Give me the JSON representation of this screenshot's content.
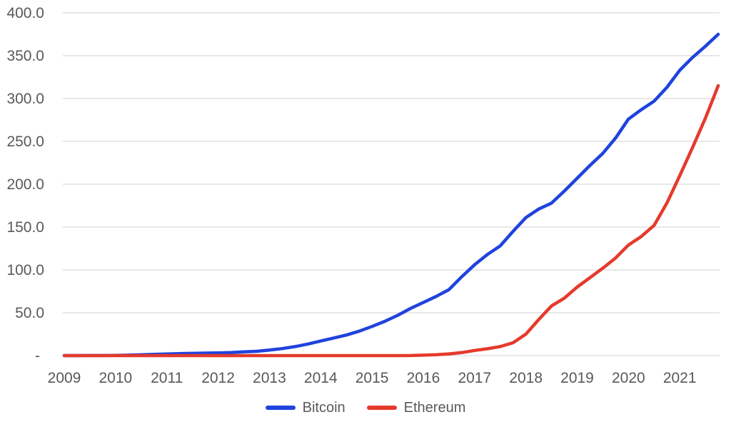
{
  "chart_data": {
    "type": "line",
    "title": "",
    "xlabel": "",
    "ylabel": "",
    "grid": "horizontal",
    "legend_position": "bottom-center",
    "background_color": "#ffffff",
    "gridline_color": "#d9d9d9",
    "axis_text_color": "#595959",
    "ylim": [
      0,
      400
    ],
    "y_tick_step": 50,
    "y_tick_labels": [
      "-",
      "50.0",
      "100.0",
      "150.0",
      "200.0",
      "250.0",
      "300.0",
      "350.0",
      "400.0"
    ],
    "x_tick_labels": [
      "2009",
      "2010",
      "2011",
      "2012",
      "2013",
      "2014",
      "2015",
      "2016",
      "2017",
      "2018",
      "2019",
      "2020",
      "2021"
    ],
    "x": [
      2009.0,
      2009.25,
      2009.5,
      2009.75,
      2010.0,
      2010.25,
      2010.5,
      2010.75,
      2011.0,
      2011.25,
      2011.5,
      2011.75,
      2012.0,
      2012.25,
      2012.5,
      2012.75,
      2013.0,
      2013.25,
      2013.5,
      2013.75,
      2014.0,
      2014.25,
      2014.5,
      2014.75,
      2015.0,
      2015.25,
      2015.5,
      2015.75,
      2016.0,
      2016.25,
      2016.5,
      2016.75,
      2017.0,
      2017.25,
      2017.5,
      2017.75,
      2018.0,
      2018.25,
      2018.5,
      2018.75,
      2019.0,
      2019.25,
      2019.5,
      2019.75,
      2020.0,
      2020.25,
      2020.5,
      2020.75,
      2021.0,
      2021.25,
      2021.5,
      2021.75
    ],
    "series": [
      {
        "name": "Bitcoin",
        "color": "#1f43dd",
        "values": [
          0.0,
          0.0,
          0.1,
          0.1,
          0.2,
          0.5,
          0.9,
          1.4,
          1.9,
          2.3,
          2.6,
          2.9,
          3.2,
          3.6,
          4.3,
          5.0,
          6.5,
          8.2,
          10.5,
          13.5,
          17.0,
          20.5,
          24.0,
          28.5,
          34.0,
          40.0,
          47.0,
          55.0,
          62.0,
          69.0,
          77.0,
          92.0,
          106.0,
          118.0,
          128.0,
          145.0,
          161.0,
          171.0,
          178.0,
          192.0,
          207.0,
          222.0,
          236.0,
          254.0,
          276.0,
          287.0,
          297.0,
          313.0,
          333.0,
          348.0,
          361.0,
          375.0
        ]
      },
      {
        "name": "Ethereum",
        "color": "#e53a2c",
        "values": [
          0.0,
          0.0,
          0.0,
          0.0,
          0.0,
          0.0,
          0.0,
          0.0,
          0.0,
          0.0,
          0.0,
          0.0,
          0.0,
          0.0,
          0.0,
          0.0,
          0.0,
          0.0,
          0.0,
          0.0,
          0.0,
          0.0,
          0.0,
          0.0,
          0.0,
          0.0,
          0.0,
          0.1,
          0.5,
          1.0,
          2.0,
          3.5,
          6.0,
          8.0,
          10.5,
          15.0,
          25.0,
          42.0,
          58.0,
          67.0,
          80.0,
          91.0,
          102.0,
          114.0,
          129.0,
          139.0,
          152.0,
          178.0,
          210.0,
          243.0,
          277.0,
          315.0
        ]
      }
    ]
  }
}
